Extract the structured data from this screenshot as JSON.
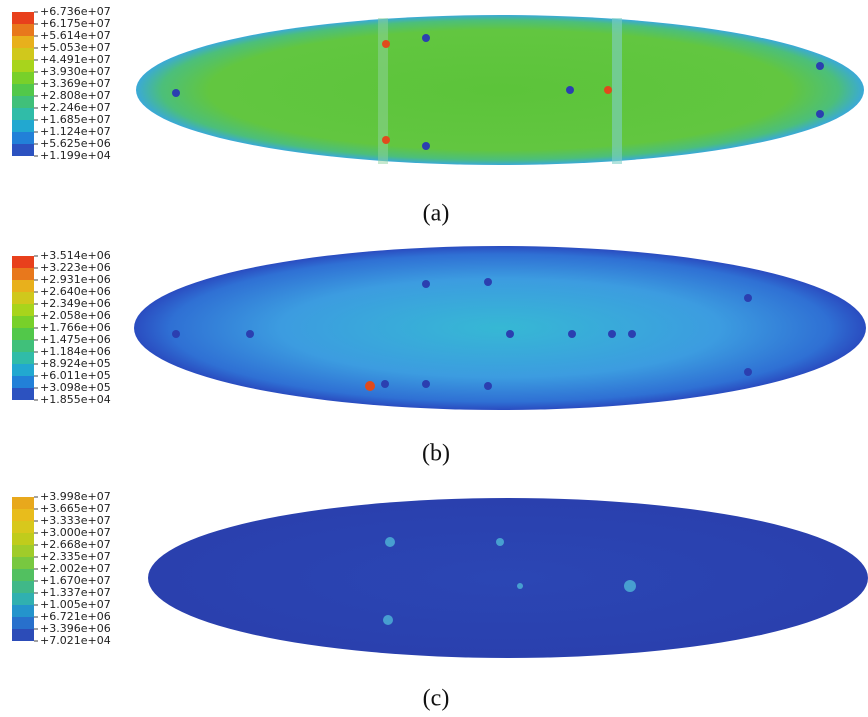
{
  "panels": [
    {
      "legend": [
        "+6.736e+07",
        "+6.175e+07",
        "+5.614e+07",
        "+5.053e+07",
        "+4.491e+07",
        "+3.930e+07",
        "+3.369e+07",
        "+2.808e+07",
        "+2.246e+07",
        "+1.685e+07",
        "+1.124e+07",
        "+5.625e+06",
        "+1.199e+04"
      ],
      "caption": "(a)"
    },
    {
      "legend": [
        "+3.514e+06",
        "+3.223e+06",
        "+2.931e+06",
        "+2.640e+06",
        "+2.349e+06",
        "+2.058e+06",
        "+1.766e+06",
        "+1.475e+06",
        "+1.184e+06",
        "+8.924e+05",
        "+6.011e+05",
        "+3.098e+05",
        "+1.855e+04"
      ],
      "caption": "(b)"
    },
    {
      "legend": [
        "+3.998e+07",
        "+3.665e+07",
        "+3.333e+07",
        "+3.000e+07",
        "+2.668e+07",
        "+2.335e+07",
        "+2.002e+07",
        "+1.670e+07",
        "+1.337e+07",
        "+1.005e+07",
        "+6.721e+06",
        "+3.396e+06",
        "+7.021e+04"
      ],
      "caption": "(c)"
    }
  ]
}
